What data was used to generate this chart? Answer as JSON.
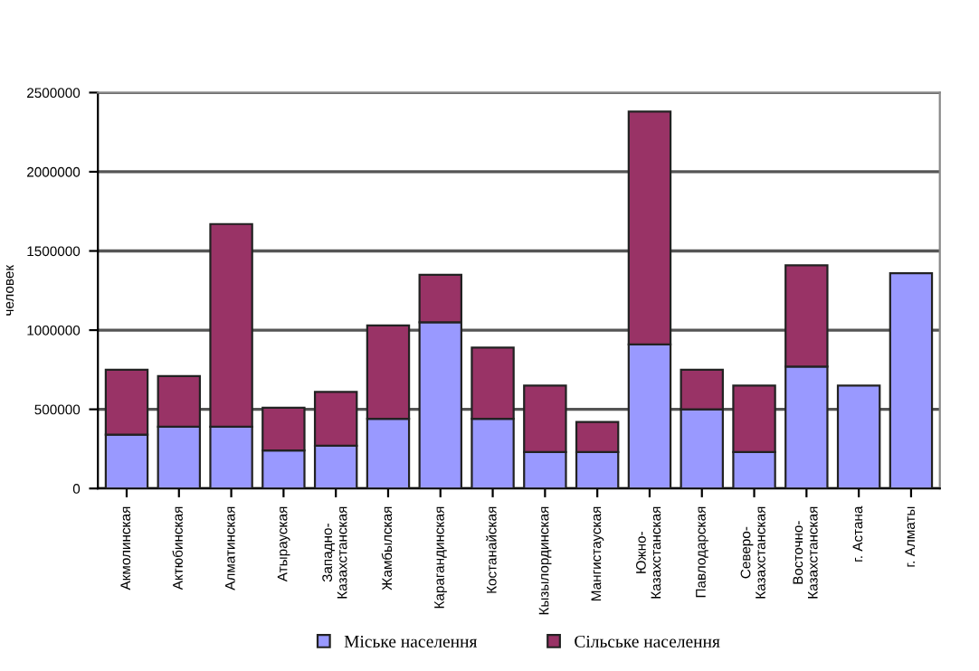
{
  "chart_data": {
    "type": "bar",
    "stacked": true,
    "ylabel": "человек",
    "categories": [
      "Акмолинская",
      "Актюбинская",
      "Алматинская",
      "Атырауская",
      "Западно-\nКазахстанская",
      "Жамбылская",
      "Карагандинская",
      "Костанайская",
      "Кызылординская",
      "Мангистауская",
      "Южно-\nКазахстанская",
      "Павлодарская",
      "Северо-\nКазахстанская",
      "Восточно-\nКазахстанская",
      "г. Астана",
      "г. Алматы"
    ],
    "series": [
      {
        "name": "Міське населення",
        "color": "#9999ff",
        "values": [
          340000,
          390000,
          390000,
          240000,
          270000,
          440000,
          1050000,
          440000,
          230000,
          230000,
          910000,
          500000,
          230000,
          770000,
          650000,
          1360000
        ]
      },
      {
        "name": "Сільське населення",
        "color": "#993366",
        "values": [
          410000,
          320000,
          1280000,
          270000,
          340000,
          590000,
          300000,
          450000,
          420000,
          190000,
          1470000,
          250000,
          420000,
          640000,
          null,
          null
        ]
      }
    ],
    "ylim": [
      0,
      2500000
    ],
    "yticks": [
      0,
      500000,
      1000000,
      1500000,
      2000000,
      2500000
    ],
    "grid": "y",
    "legend": "bottom"
  }
}
